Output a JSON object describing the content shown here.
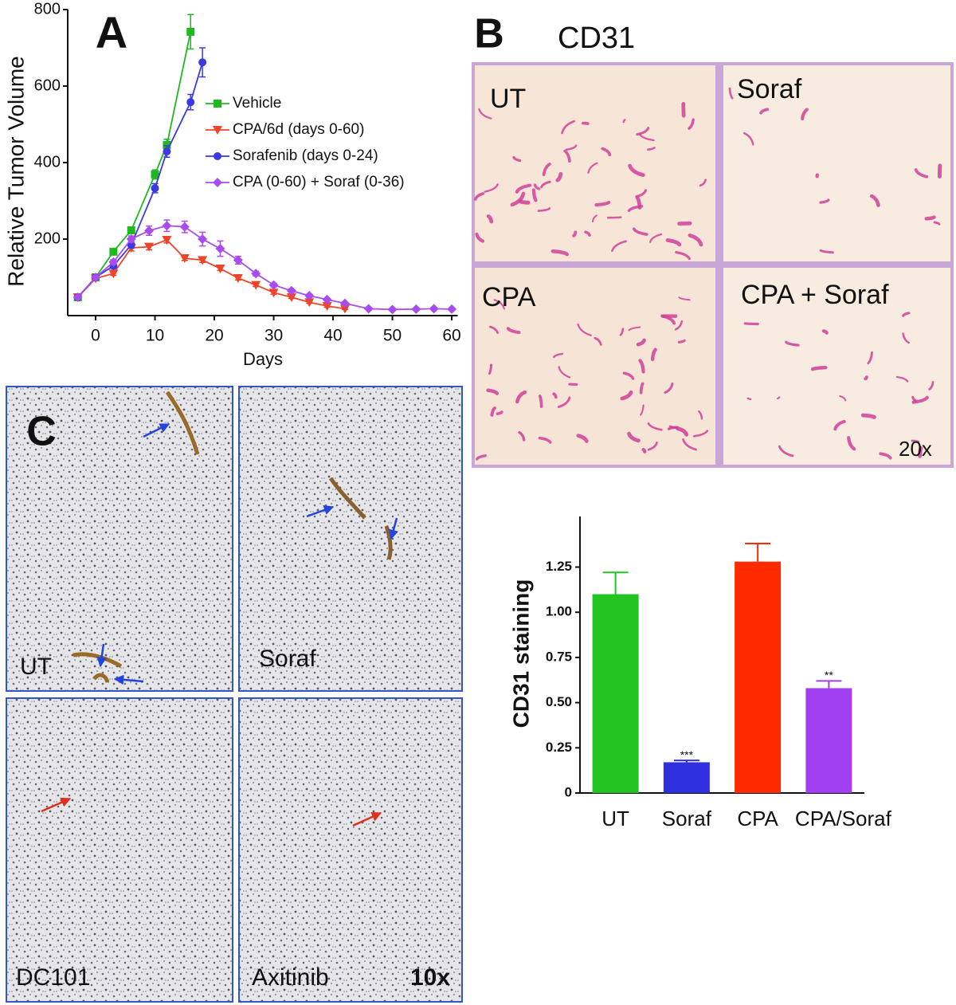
{
  "panels": {
    "a": "A",
    "b": "B",
    "b_title": "CD31",
    "b_images": [
      "UT",
      "Soraf",
      "CPA",
      "CPA + Soraf"
    ],
    "b_magnification": "20x",
    "c": "C",
    "c_images": [
      "UT",
      "Soraf",
      "DC101",
      "Axitinib"
    ],
    "c_magnification": "10x"
  },
  "chart_data": [
    {
      "type": "line",
      "xlabel": "Days",
      "ylabel": "Relative Tumor Volume",
      "xlim": [
        -4.7,
        61
      ],
      "xticks": [
        0,
        10,
        20,
        30,
        40,
        50,
        60
      ],
      "ylim": [
        0,
        800
      ],
      "yticks": [
        200,
        400,
        600,
        800
      ],
      "legend": "upper right",
      "series": [
        {
          "name": "Vehicle",
          "color": "#1fb81f",
          "marker": "square",
          "x": [
            -3,
            0,
            3,
            6,
            10,
            12,
            16
          ],
          "values": [
            48,
            100,
            167,
            223,
            369,
            446,
            742
          ],
          "errors": [
            4,
            6,
            6,
            8,
            12,
            15,
            45
          ]
        },
        {
          "name": "CPA/6d (days 0-60)",
          "color": "#f04428",
          "marker": "triangle-down",
          "x": [
            -3,
            0,
            3,
            6,
            9,
            12,
            15,
            18,
            21,
            24,
            27,
            30,
            33,
            36,
            39,
            42
          ],
          "values": [
            48,
            97,
            110,
            177,
            180,
            198,
            150,
            145,
            123,
            98,
            80,
            60,
            48,
            35,
            25,
            18
          ],
          "errors": [
            4,
            5,
            5,
            8,
            8,
            8,
            6,
            6,
            5,
            5,
            4,
            4,
            3,
            3,
            3,
            2
          ]
        },
        {
          "name": "Sorafenib (days 0-24)",
          "color": "#3a3ae0",
          "marker": "circle",
          "x": [
            -3,
            0,
            3,
            6,
            10,
            12,
            16,
            18
          ],
          "values": [
            48,
            100,
            130,
            185,
            333,
            429,
            558,
            662
          ],
          "errors": [
            4,
            6,
            6,
            8,
            12,
            15,
            20,
            38
          ]
        },
        {
          "name": "CPA (0-60) + Soraf (0-36)",
          "color": "#a84cf0",
          "marker": "diamond",
          "x": [
            -3,
            0,
            3,
            6,
            9,
            12,
            15,
            18,
            21,
            24,
            27,
            30,
            33,
            36,
            39,
            42,
            46,
            50,
            54,
            57,
            60
          ],
          "values": [
            48,
            100,
            140,
            200,
            222,
            235,
            232,
            200,
            175,
            145,
            110,
            80,
            65,
            52,
            42,
            32,
            18,
            16,
            17,
            18,
            17
          ],
          "errors": [
            4,
            5,
            6,
            8,
            12,
            15,
            15,
            18,
            20,
            10,
            6,
            5,
            4,
            4,
            3,
            3,
            2,
            2,
            2,
            2,
            2
          ]
        }
      ]
    },
    {
      "type": "bar",
      "ylabel": "CD31 staining",
      "categories": [
        "UT",
        "Soraf",
        "CPA",
        "CPA/Soraf"
      ],
      "values": [
        1.1,
        0.17,
        1.28,
        0.58
      ],
      "errors": [
        0.12,
        0.01,
        0.1,
        0.04
      ],
      "colors": [
        "#22c422",
        "#3030e0",
        "#ff2a00",
        "#a040f0"
      ],
      "significance": [
        null,
        "***",
        null,
        "**"
      ],
      "ylim": [
        0,
        1.53
      ],
      "yticks": [
        0,
        0.25,
        {
          "value": 0.5,
          "label": "0.50"
        },
        0.75,
        {
          "value": 1,
          "label": "1.00"
        },
        1.25
      ]
    }
  ]
}
